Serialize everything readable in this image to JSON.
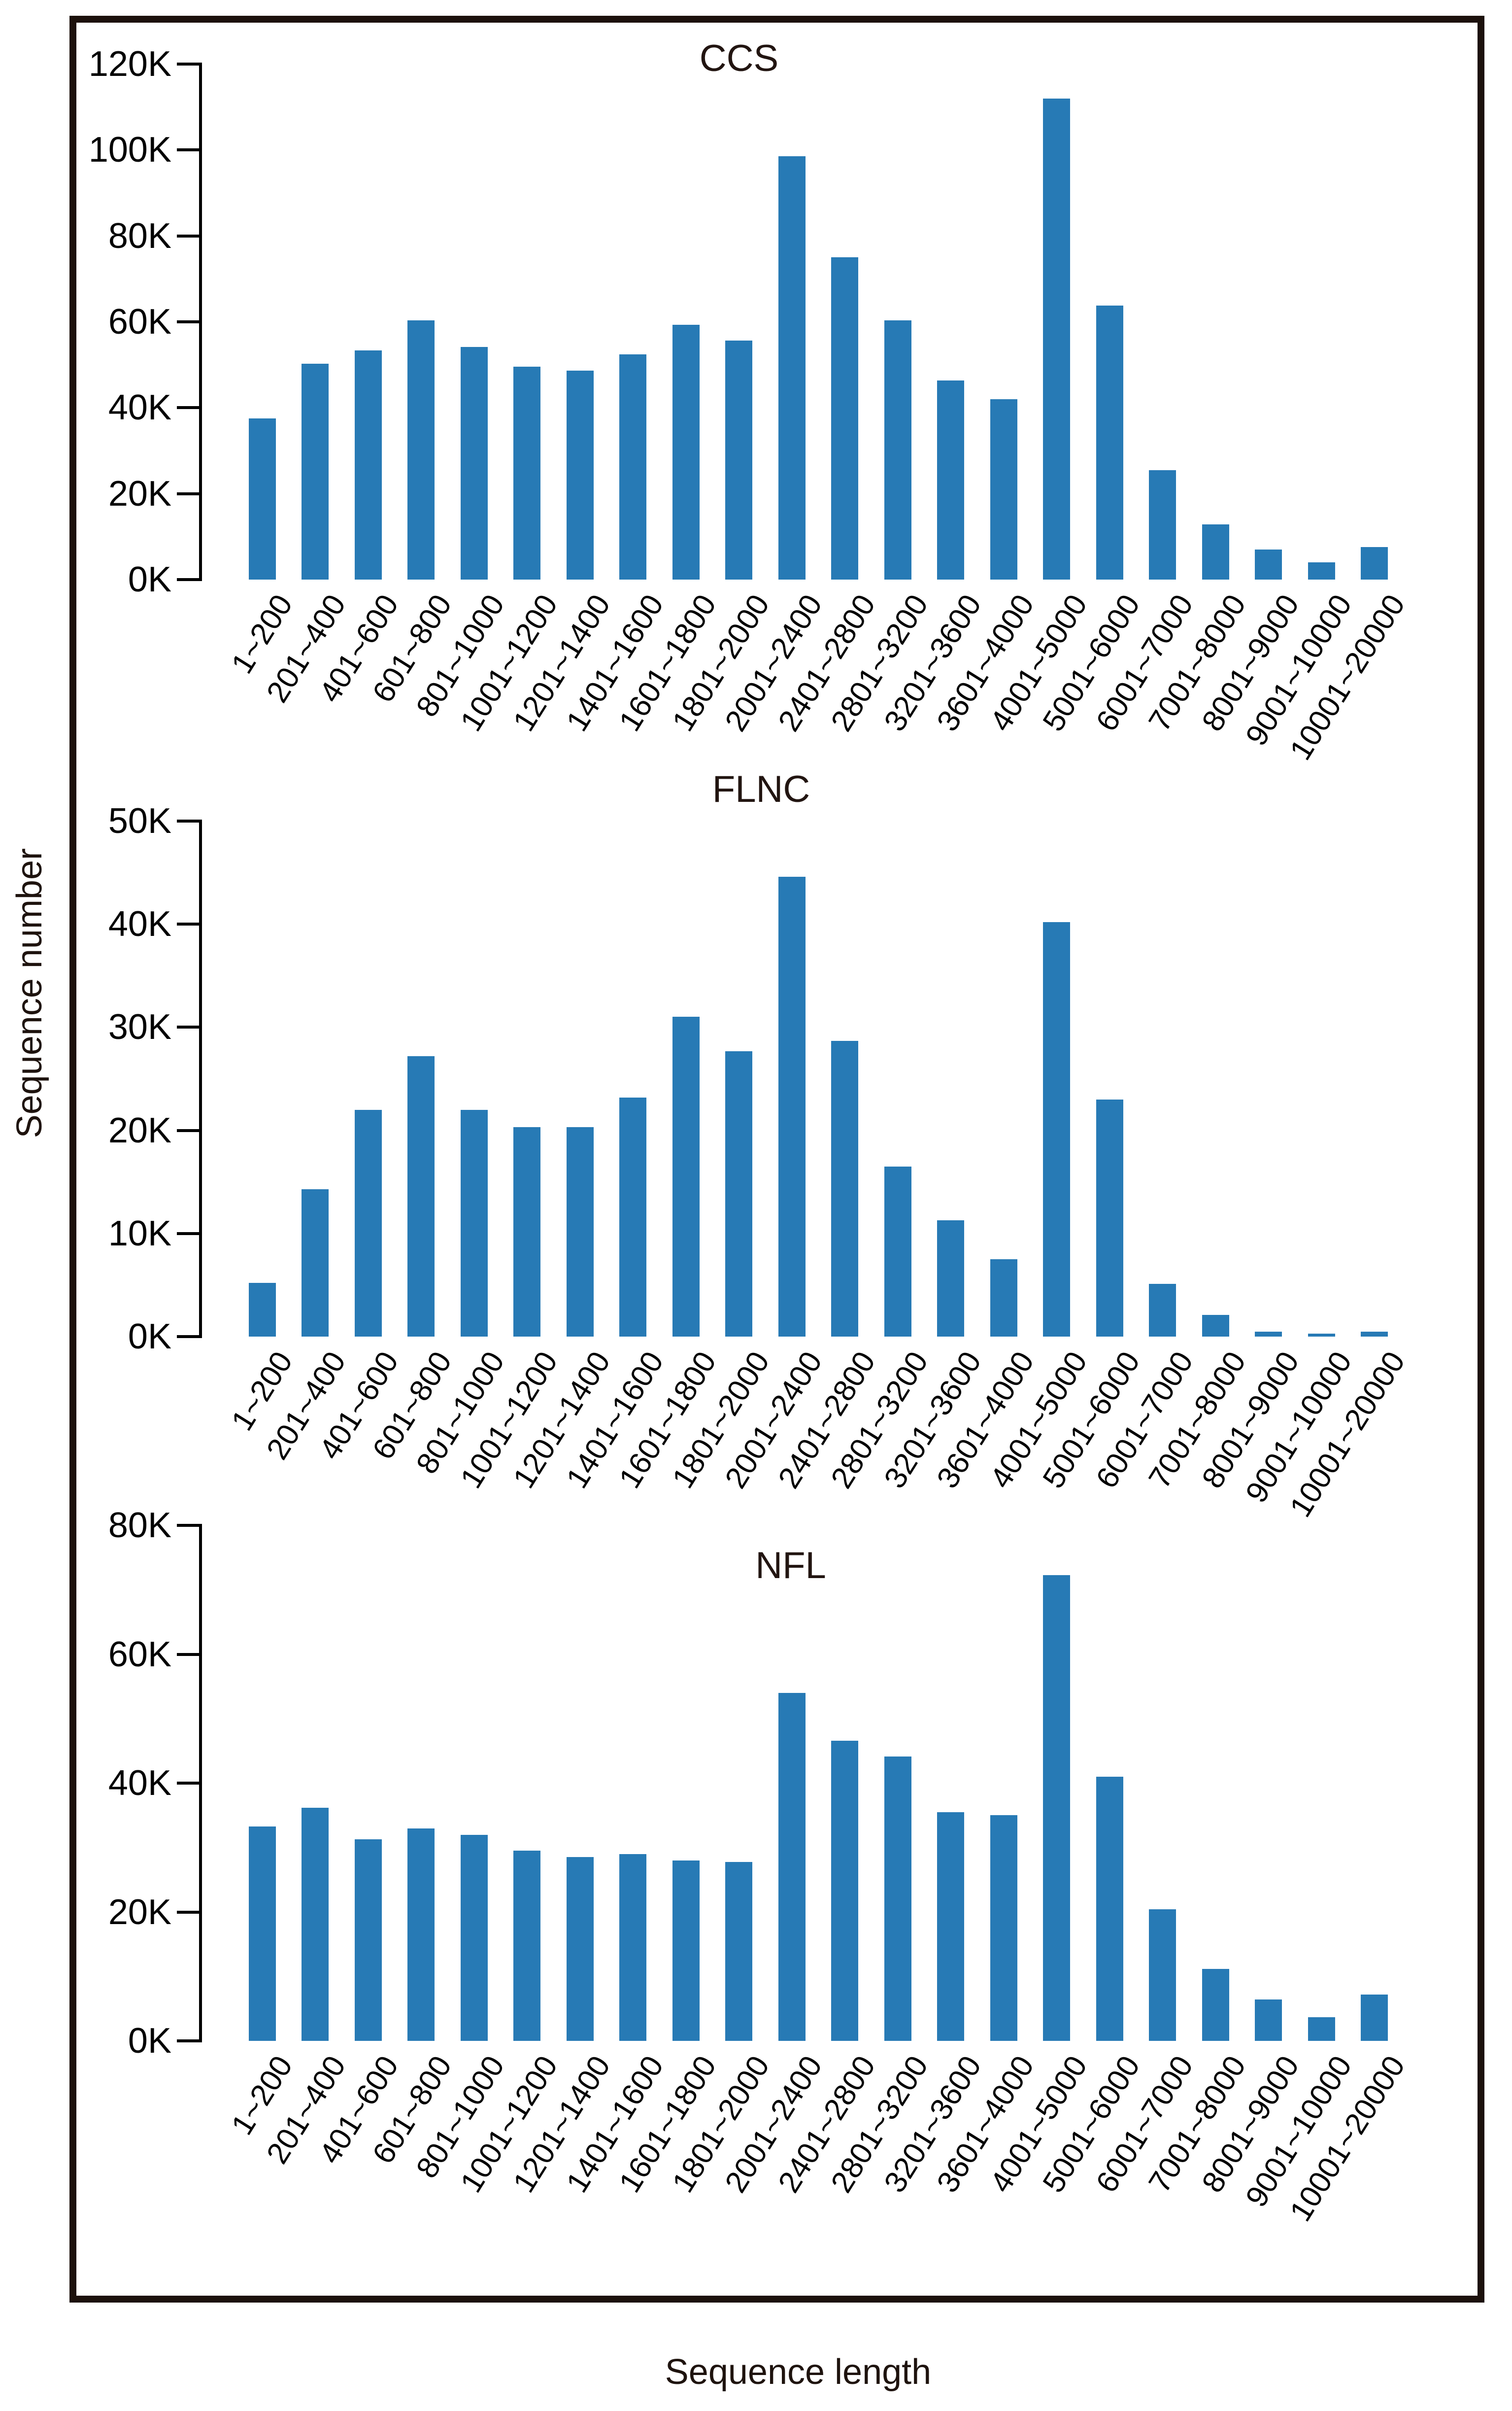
{
  "figure": {
    "ylabel": "Sequence number",
    "xlabel": "Sequence length",
    "bar_color": "#277ab5",
    "border_color": "#1c110c",
    "background_color": "#ffffff"
  },
  "chart_data": [
    {
      "type": "bar",
      "title": "CCS",
      "unit": "K",
      "ylim": [
        0,
        120
      ],
      "ytick_step": 20,
      "ytick_labels": [
        "0K",
        "20K",
        "40K",
        "60K",
        "80K",
        "100K",
        "120K"
      ],
      "grid": false,
      "legend": "none",
      "categories": [
        "1~200",
        "201~400",
        "401~600",
        "601~800",
        "801~1000",
        "1001~1200",
        "1201~1400",
        "1401~1600",
        "1601~1800",
        "1801~2000",
        "2001~2400",
        "2401~2800",
        "2801~3200",
        "3201~3600",
        "3601~4000",
        "4001~5000",
        "5001~6000",
        "6001~7000",
        "7001~8000",
        "8001~9000",
        "9001~10000",
        "10001~20000"
      ],
      "values": [
        37.5,
        50.2,
        53.3,
        60.3,
        54.1,
        49.6,
        48.6,
        52.4,
        59.3,
        55.6,
        98.5,
        75.0,
        60.3,
        46.4,
        42.0,
        112.0,
        63.8,
        25.5,
        12.8,
        7.0,
        4.0,
        7.6
      ]
    },
    {
      "type": "bar",
      "title": "FLNC",
      "unit": "K",
      "ylim": [
        0,
        50
      ],
      "ytick_step": 10,
      "ytick_labels": [
        "0K",
        "10K",
        "20K",
        "30K",
        "40K",
        "50K"
      ],
      "grid": false,
      "legend": "none",
      "categories": [
        "1~200",
        "201~400",
        "401~600",
        "601~800",
        "801~1000",
        "1001~1200",
        "1201~1400",
        "1401~1600",
        "1601~1800",
        "1801~2000",
        "2001~2400",
        "2401~2800",
        "2801~3200",
        "3201~3600",
        "3601~4000",
        "4001~5000",
        "5001~6000",
        "6001~7000",
        "7001~8000",
        "8001~9000",
        "9001~10000",
        "10001~20000"
      ],
      "values": [
        5.2,
        14.3,
        22.0,
        27.2,
        22.0,
        20.3,
        20.3,
        23.2,
        31.0,
        27.7,
        44.6,
        28.7,
        16.5,
        11.3,
        7.5,
        40.2,
        23.0,
        5.1,
        2.1,
        0.5,
        0.3,
        0.5
      ]
    },
    {
      "type": "bar",
      "title": "NFL",
      "unit": "K",
      "ylim": [
        0,
        80
      ],
      "ytick_step": 20,
      "ytick_labels": [
        "0K",
        "20K",
        "40K",
        "60K",
        "80K"
      ],
      "grid": false,
      "legend": "none",
      "categories": [
        "1~200",
        "201~400",
        "401~600",
        "601~800",
        "801~1000",
        "1001~1200",
        "1201~1400",
        "1401~1600",
        "1601~1800",
        "1801~2000",
        "2001~2400",
        "2401~2800",
        "2801~3200",
        "3201~3600",
        "3601~4000",
        "4001~5000",
        "5001~6000",
        "6001~7000",
        "7001~8000",
        "8001~9000",
        "9001~10000",
        "10001~20000"
      ],
      "values": [
        33.3,
        36.2,
        31.3,
        33.0,
        32.0,
        29.5,
        28.5,
        29.0,
        28.0,
        27.8,
        54.0,
        46.6,
        44.1,
        35.5,
        35.0,
        72.3,
        41.0,
        20.4,
        11.2,
        6.4,
        3.7,
        7.2
      ]
    }
  ]
}
